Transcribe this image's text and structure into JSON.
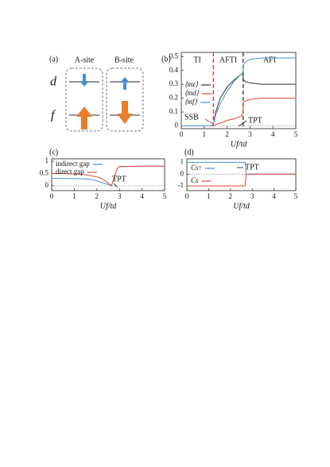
{
  "diagram": {
    "label": "(a)",
    "sites": [
      "A-site",
      "B-site"
    ],
    "levels": [
      "d",
      "f"
    ]
  },
  "chart_data": [
    {
      "type": "line",
      "label": "(b)",
      "xlabel": "Uf/td",
      "x": [
        0,
        0.5,
        1,
        1.3,
        1.4,
        1.5,
        1.7,
        2,
        2.3,
        2.6,
        2.68,
        2.72,
        2.8,
        3,
        3.5,
        4,
        4.5,
        5
      ],
      "series": [
        {
          "name": "⟨mz⟩",
          "color": "#333333",
          "values": [
            0,
            0,
            0,
            0,
            0.01,
            0.1,
            0.2,
            0.28,
            0.33,
            0.37,
            0.38,
            0.33,
            0.32,
            0.31,
            0.3,
            0.3,
            0.3,
            0.3
          ]
        },
        {
          "name": "⟨md⟩",
          "color": "#e0483a",
          "values": [
            0,
            0,
            0,
            0,
            0,
            0.01,
            0.02,
            0.04,
            0.05,
            0.07,
            0.08,
            0.17,
            0.18,
            0.19,
            0.2,
            0.2,
            0.2,
            0.2
          ]
        },
        {
          "name": "⟨mf⟩",
          "color": "#4a90d0",
          "values": [
            0,
            0,
            0,
            0,
            0.01,
            0.08,
            0.16,
            0.25,
            0.32,
            0.37,
            0.38,
            0.44,
            0.46,
            0.48,
            0.49,
            0.49,
            0.49,
            0.49
          ]
        }
      ],
      "vlines": [
        {
          "x": 1.4,
          "color": "#e03030"
        },
        {
          "x": 2.7,
          "color": "#333333"
        }
      ],
      "regions": [
        "TI",
        "AFTI",
        "AFI"
      ],
      "annotations": [
        "SSB",
        "TPT"
      ],
      "xlim": [
        0,
        5
      ],
      "xticks": [
        0,
        1,
        2,
        3,
        4,
        5
      ],
      "ylim": [
        -0.02,
        0.53
      ],
      "yticks": [
        0,
        0.1,
        0.2,
        0.3,
        0.4,
        0.5
      ],
      "zero_line": true
    },
    {
      "type": "line",
      "label": "(c)",
      "xlabel": "Uf/td",
      "x": [
        0,
        0.5,
        1,
        1.5,
        1.8,
        2,
        2.2,
        2.4,
        2.55,
        2.65,
        2.75,
        2.9,
        3,
        3.5,
        4,
        4.5,
        5
      ],
      "series": [
        {
          "name": "indirect gap",
          "color": "#4a90d0",
          "values": [
            0.3,
            0.3,
            0.29,
            0.28,
            0.25,
            0.2,
            0.14,
            0.08,
            0.04,
            0,
            0.3,
            0.7,
            0.78,
            0.79,
            0.8,
            0.8,
            0.8
          ]
        },
        {
          "name": "direct gap",
          "color": "#e0483a",
          "values": [
            0.5,
            0.5,
            0.48,
            0.45,
            0.4,
            0.36,
            0.3,
            0.18,
            0.08,
            0,
            0.3,
            0.7,
            0.78,
            0.79,
            0.8,
            0.8,
            0.8
          ]
        }
      ],
      "annotations": [
        "TPT"
      ],
      "xlim": [
        0,
        5
      ],
      "xticks": [
        0,
        1,
        2,
        3,
        4,
        5
      ],
      "ylim": [
        -0.2,
        1.1
      ],
      "yticks": [
        0,
        0.5,
        1
      ],
      "zero_line": true
    },
    {
      "type": "line",
      "label": "(d)",
      "xlabel": "Uf/td",
      "x": [
        0,
        2.68,
        2.72,
        5
      ],
      "series": [
        {
          "name": "Cs↑",
          "color": "#4a90d0",
          "values": [
            1,
            1,
            0,
            0
          ]
        },
        {
          "name": "Cs",
          "color": "#e0483a",
          "values": [
            -1,
            -1,
            0,
            0
          ]
        }
      ],
      "annotations": [
        "TPT"
      ],
      "xlim": [
        0,
        5
      ],
      "xticks": [
        0,
        1,
        2,
        3,
        4,
        5
      ],
      "ylim": [
        -1.4,
        1.3
      ],
      "yticks": [
        -1,
        0,
        1
      ],
      "zero_line": true
    }
  ]
}
